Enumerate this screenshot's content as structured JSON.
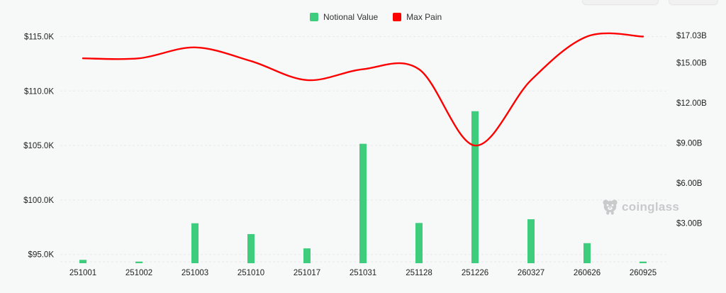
{
  "watermark": {
    "text": "coinglass",
    "color": "#c8cacb"
  },
  "chart_data": {
    "type": "combo",
    "title": "",
    "categories": [
      "251001",
      "251002",
      "251003",
      "251010",
      "251017",
      "251031",
      "251128",
      "251226",
      "260327",
      "260626",
      "260925"
    ],
    "series": [
      {
        "name": "Notional Value",
        "type": "bar",
        "axis": "right",
        "unit": "USD (billions)",
        "color": "#3dcd7d",
        "values": [
          0.24,
          0.11,
          2.98,
          2.17,
          1.1,
          8.93,
          3.0,
          11.37,
          3.28,
          1.49,
          0.11
        ]
      },
      {
        "name": "Max Pain",
        "type": "line",
        "axis": "left",
        "unit": "USD",
        "color": "#ff0000",
        "values": [
          113000,
          113000,
          114000,
          112750,
          111000,
          112000,
          112000,
          105000,
          111000,
          115000,
          115000
        ]
      }
    ],
    "left_axis": {
      "applies_to": "Max Pain",
      "tick_labels": [
        "$115.0K",
        "$110.0K",
        "$105.0K",
        "$100.0K",
        "$95.0K"
      ],
      "tick_values": [
        115000,
        110000,
        105000,
        100000,
        95000
      ]
    },
    "right_axis": {
      "applies_to": "Notional Value",
      "tick_labels": [
        "$17.03B",
        "$15.00B",
        "$12.00B",
        "$9.00B",
        "$6.00B",
        "$3.00B"
      ],
      "tick_values": [
        17.03,
        15,
        12,
        9,
        6,
        3
      ],
      "min": 0,
      "max": 17.03
    },
    "grid": "horizontal dashed lines from left-axis ticks",
    "legend_position": "top-center",
    "line_style": "smooth"
  }
}
